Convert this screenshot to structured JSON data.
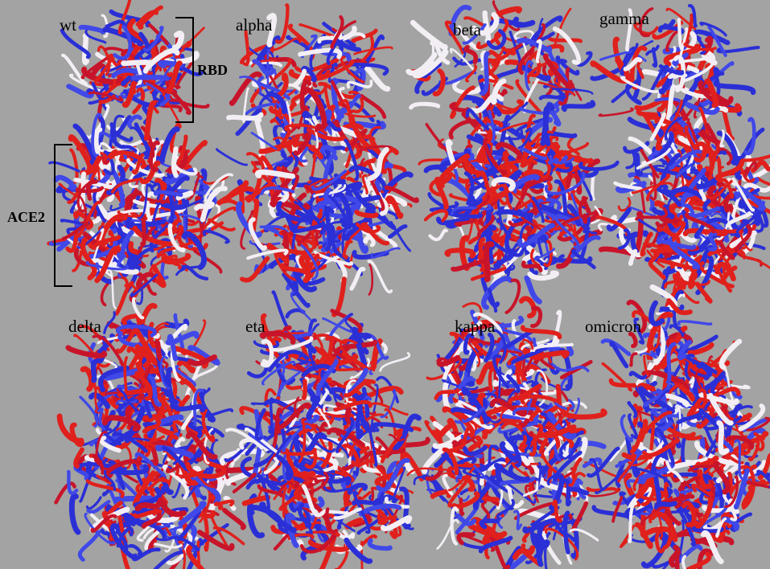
{
  "panels": [
    {
      "label": "wt"
    },
    {
      "label": "alpha"
    },
    {
      "label": "beta"
    },
    {
      "label": "gamma"
    },
    {
      "label": "delta"
    },
    {
      "label": "eta"
    },
    {
      "label": "kappa"
    },
    {
      "label": "omicron"
    }
  ],
  "annotations": {
    "rbd": "RBD",
    "ace2": "ACE2"
  }
}
